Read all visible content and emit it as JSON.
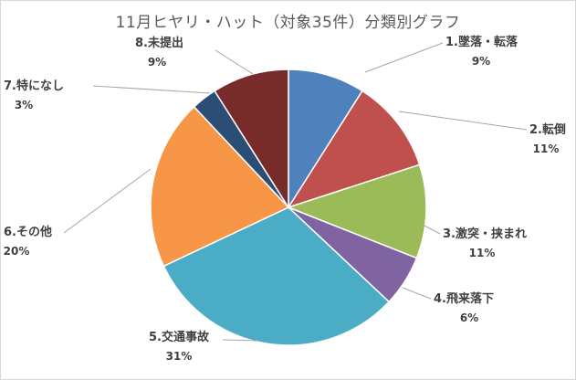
{
  "chart_data": {
    "type": "pie",
    "title": "11月ヒヤリ・ハット（対象35件）分類別グラフ",
    "start": "12 o'clock, clockwise",
    "categories": [
      "1.墜落・転落",
      "2.転倒",
      "3.激突・挟まれ",
      "4.飛来落下",
      "5.交通事故",
      "6.その他",
      "7.特になし",
      "8.未提出"
    ],
    "values": [
      9,
      11,
      11,
      6,
      31,
      20,
      3,
      9
    ],
    "value_labels": [
      "9%",
      "11%",
      "11%",
      "6%",
      "31%",
      "20%",
      "3%",
      "9%"
    ],
    "colors": [
      "#4f81bd",
      "#c0504d",
      "#9bbb59",
      "#8064a2",
      "#4bacc6",
      "#f79646",
      "#2c4d75",
      "#772c2a"
    ],
    "legend": "none"
  }
}
